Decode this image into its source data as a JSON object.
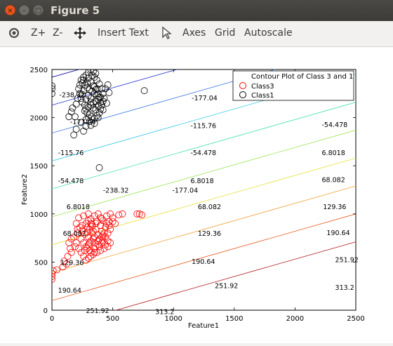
{
  "window": {
    "title": "Figure 5"
  },
  "toolbar": {
    "zoom_in": "Z+",
    "zoom_out": "Z-",
    "insert_text": "Insert Text",
    "axes": "Axes",
    "grid": "Grid",
    "autoscale": "Autoscale"
  },
  "chart_data": {
    "type": "scatter",
    "title": "",
    "xlabel": "Feature1",
    "ylabel": "Feature2",
    "xlim": [
      0,
      2500
    ],
    "ylim": [
      0,
      2500
    ],
    "xticks": [
      "0",
      "500",
      "1000",
      "1500",
      "2000",
      "2500"
    ],
    "yticks": [
      "0",
      "500",
      "1000",
      "1500",
      "2000",
      "2500"
    ],
    "legend": {
      "placement": "top-right",
      "entries": [
        "Contour Plot of Class 3 and 1",
        "Class3",
        "Class1"
      ]
    },
    "contours": {
      "levels": [
        -238.32,
        -177.04,
        -115.76,
        -54.478,
        6.8018,
        68.082,
        129.36,
        190.64,
        251.92,
        313.2
      ],
      "colors": [
        "#0000a8",
        "#1c2cd0",
        "#3c78e8",
        "#30c8e8",
        "#40e0b0",
        "#9ae650",
        "#e6e030",
        "#f0a030",
        "#e85820",
        "#b01010"
      ],
      "labels": [
        {
          "text": "-238.32",
          "x": 60,
          "y": 2240
        },
        {
          "text": "-177.04",
          "x": 150,
          "y": 1960
        },
        {
          "text": "-177.04",
          "x": 1150,
          "y": 2210
        },
        {
          "text": "-115.76",
          "x": 50,
          "y": 1640
        },
        {
          "text": "-115.76",
          "x": 1140,
          "y": 1920
        },
        {
          "text": "-54.478",
          "x": 50,
          "y": 1350
        },
        {
          "text": "-54.478",
          "x": 1140,
          "y": 1640
        },
        {
          "text": "-54.478",
          "x": 2220,
          "y": 1930
        },
        {
          "text": "-238.32",
          "x": 420,
          "y": 1250
        },
        {
          "text": "-177.04",
          "x": 990,
          "y": 1250
        },
        {
          "text": "6.8018",
          "x": 1140,
          "y": 1350
        },
        {
          "text": "6.8018",
          "x": 2220,
          "y": 1640
        },
        {
          "text": "6.8018",
          "x": 120,
          "y": 1080
        },
        {
          "text": "68.082",
          "x": 1200,
          "y": 1080
        },
        {
          "text": "68.082",
          "x": 2220,
          "y": 1360
        },
        {
          "text": "68.082",
          "x": 90,
          "y": 800
        },
        {
          "text": "129.36",
          "x": 1200,
          "y": 800
        },
        {
          "text": "129.36",
          "x": 2230,
          "y": 1080
        },
        {
          "text": "129.36",
          "x": 70,
          "y": 500
        },
        {
          "text": "190.64",
          "x": 1150,
          "y": 510
        },
        {
          "text": "190.64",
          "x": 2260,
          "y": 810
        },
        {
          "text": "190.64",
          "x": 50,
          "y": 210
        },
        {
          "text": "251.92",
          "x": 1340,
          "y": 260
        },
        {
          "text": "251.92",
          "x": 2330,
          "y": 530
        },
        {
          "text": "251.92",
          "x": 280,
          "y": 0
        },
        {
          "text": "313.2",
          "x": 850,
          "y": -10
        },
        {
          "text": "313.2",
          "x": 2330,
          "y": 240
        }
      ]
    },
    "series": [
      {
        "name": "Class3",
        "color": "#ff0000",
        "points": [
          [
            320,
            950
          ],
          [
            350,
            980
          ],
          [
            380,
            1000
          ],
          [
            400,
            960
          ],
          [
            420,
            930
          ],
          [
            450,
            900
          ],
          [
            470,
            880
          ],
          [
            360,
            900
          ],
          [
            330,
            870
          ],
          [
            310,
            840
          ],
          [
            290,
            810
          ],
          [
            270,
            790
          ],
          [
            300,
            760
          ],
          [
            340,
            740
          ],
          [
            380,
            720
          ],
          [
            410,
            700
          ],
          [
            440,
            680
          ],
          [
            460,
            660
          ],
          [
            430,
            640
          ],
          [
            400,
            620
          ],
          [
            370,
            600
          ],
          [
            340,
            580
          ],
          [
            320,
            560
          ],
          [
            300,
            540
          ],
          [
            280,
            520
          ],
          [
            260,
            560
          ],
          [
            240,
            600
          ],
          [
            220,
            640
          ],
          [
            200,
            700
          ],
          [
            180,
            760
          ],
          [
            210,
            800
          ],
          [
            250,
            830
          ],
          [
            290,
            860
          ],
          [
            330,
            890
          ],
          [
            370,
            920
          ],
          [
            410,
            950
          ],
          [
            450,
            980
          ],
          [
            480,
            1000
          ],
          [
            500,
            960
          ],
          [
            470,
            920
          ],
          [
            440,
            860
          ],
          [
            410,
            820
          ],
          [
            380,
            780
          ],
          [
            350,
            760
          ],
          [
            320,
            720
          ],
          [
            300,
            680
          ],
          [
            290,
            640
          ],
          [
            310,
            620
          ],
          [
            350,
            640
          ],
          [
            390,
            660
          ],
          [
            420,
            720
          ],
          [
            440,
            760
          ],
          [
            460,
            800
          ],
          [
            480,
            840
          ],
          [
            400,
            880
          ],
          [
            360,
            840
          ],
          [
            330,
            800
          ],
          [
            310,
            700
          ],
          [
            280,
            660
          ],
          [
            270,
            620
          ],
          [
            260,
            700
          ],
          [
            240,
            740
          ],
          [
            350,
            700
          ],
          [
            380,
            680
          ],
          [
            410,
            760
          ],
          [
            430,
            800
          ],
          [
            360,
            660
          ],
          [
            390,
            740
          ],
          [
            420,
            780
          ],
          [
            340,
            820
          ],
          [
            320,
            900
          ],
          [
            300,
            930
          ],
          [
            280,
            900
          ],
          [
            250,
            880
          ],
          [
            230,
            860
          ],
          [
            210,
            840
          ],
          [
            200,
            900
          ],
          [
            220,
            960
          ],
          [
            260,
            980
          ],
          [
            300,
            1000
          ],
          [
            500,
            920
          ],
          [
            520,
            900
          ],
          [
            480,
            700
          ],
          [
            460,
            720
          ],
          [
            350,
            600
          ],
          [
            320,
            600
          ],
          [
            700,
            1000
          ],
          [
            720,
            1000
          ],
          [
            740,
            990
          ],
          [
            550,
            990
          ],
          [
            580,
            1000
          ],
          [
            100,
            510
          ],
          [
            120,
            480
          ],
          [
            90,
            450
          ],
          [
            40,
            420
          ],
          [
            10,
            410
          ],
          [
            0,
            380
          ],
          [
            0,
            350
          ],
          [
            0,
            320
          ],
          [
            130,
            560
          ],
          [
            160,
            600
          ],
          [
            150,
            640
          ],
          [
            140,
            700
          ],
          [
            160,
            740
          ],
          [
            190,
            660
          ]
        ]
      },
      {
        "name": "Class1",
        "color": "#000000",
        "points": [
          [
            320,
            2500
          ],
          [
            340,
            2480
          ],
          [
            360,
            2460
          ],
          [
            300,
            2470
          ],
          [
            280,
            2440
          ],
          [
            260,
            2420
          ],
          [
            240,
            2390
          ],
          [
            250,
            2360
          ],
          [
            270,
            2340
          ],
          [
            290,
            2310
          ],
          [
            310,
            2290
          ],
          [
            330,
            2270
          ],
          [
            350,
            2250
          ],
          [
            370,
            2230
          ],
          [
            390,
            2210
          ],
          [
            380,
            2190
          ],
          [
            360,
            2170
          ],
          [
            340,
            2150
          ],
          [
            320,
            2130
          ],
          [
            300,
            2110
          ],
          [
            280,
            2090
          ],
          [
            270,
            2070
          ],
          [
            290,
            2050
          ],
          [
            310,
            2030
          ],
          [
            330,
            2010
          ],
          [
            350,
            1990
          ],
          [
            370,
            2020
          ],
          [
            390,
            2050
          ],
          [
            400,
            2090
          ],
          [
            410,
            2130
          ],
          [
            420,
            2170
          ],
          [
            400,
            2210
          ],
          [
            380,
            2250
          ],
          [
            360,
            2290
          ],
          [
            340,
            2330
          ],
          [
            320,
            2370
          ],
          [
            300,
            2410
          ],
          [
            260,
            2280
          ],
          [
            250,
            2240
          ],
          [
            240,
            2200
          ],
          [
            250,
            2160
          ],
          [
            270,
            2130
          ],
          [
            280,
            2190
          ],
          [
            300,
            2230
          ],
          [
            320,
            2200
          ],
          [
            340,
            2100
          ],
          [
            360,
            2080
          ],
          [
            380,
            2120
          ],
          [
            400,
            2160
          ],
          [
            420,
            2250
          ],
          [
            410,
            2300
          ],
          [
            390,
            2350
          ],
          [
            370,
            2390
          ],
          [
            350,
            2420
          ],
          [
            330,
            2440
          ],
          [
            220,
            2300
          ],
          [
            230,
            2250
          ],
          [
            210,
            2200
          ],
          [
            200,
            2140
          ],
          [
            430,
            2200
          ],
          [
            450,
            2150
          ],
          [
            420,
            2080
          ],
          [
            440,
            2300
          ],
          [
            760,
            2280
          ],
          [
            0,
            2330
          ],
          [
            0,
            2300
          ],
          [
            0,
            2250
          ],
          [
            160,
            2060
          ],
          [
            140,
            2010
          ],
          [
            240,
            1950
          ],
          [
            280,
            1910
          ],
          [
            200,
            1880
          ],
          [
            260,
            1860
          ],
          [
            180,
            1820
          ],
          [
            320,
            1920
          ],
          [
            310,
            1960
          ],
          [
            350,
            1940
          ],
          [
            380,
            2000
          ],
          [
            190,
            2010
          ],
          [
            170,
            2100
          ],
          [
            470,
            2260
          ],
          [
            460,
            2340
          ],
          [
            300,
            2000
          ],
          [
            280,
            1980
          ],
          [
            320,
            2160
          ],
          [
            350,
            2320
          ],
          [
            290,
            2360
          ],
          [
            370,
            2300
          ],
          [
            230,
            2340
          ],
          [
            260,
            2390
          ],
          [
            390,
            1480
          ]
        ]
      }
    ]
  }
}
